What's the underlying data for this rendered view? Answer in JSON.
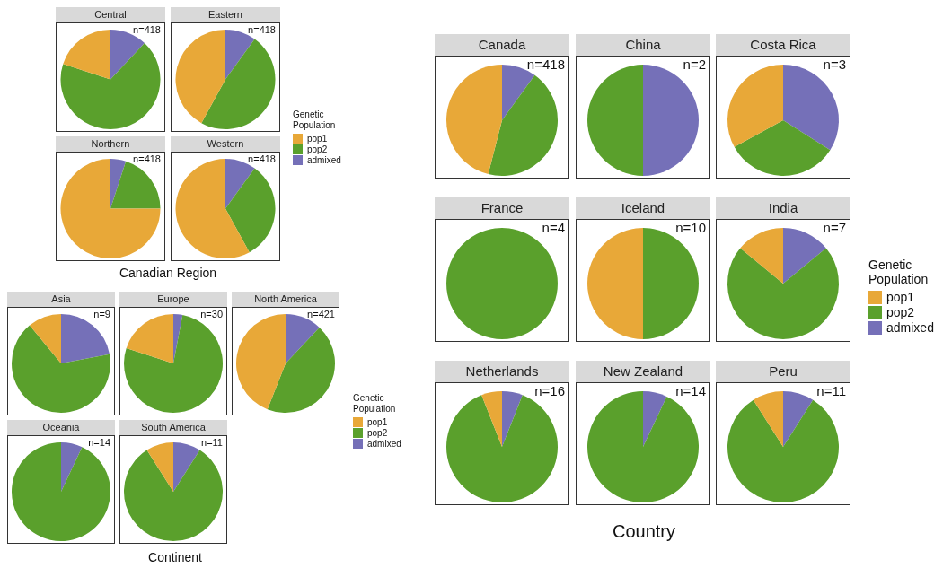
{
  "chart_data": [
    {
      "type": "pie",
      "xlabel": "Canadian Region",
      "legend": "right",
      "legend_title": "Genetic Population",
      "categories": [
        "pop1",
        "pop2",
        "admixed"
      ],
      "colors": [
        "#e8a838",
        "#5aa02c",
        "#7570b8"
      ],
      "series": [
        {
          "name": "Central",
          "values": [
            20,
            68,
            12
          ]
        },
        {
          "name": "Eastern",
          "values": [
            42,
            48,
            10
          ]
        },
        {
          "name": "Northern",
          "values": [
            75,
            20,
            5
          ]
        },
        {
          "name": "Western",
          "values": [
            58,
            32,
            10
          ]
        }
      ],
      "annotations": [
        "n=418",
        "n=418",
        "n=418",
        "n=418"
      ]
    },
    {
      "type": "pie",
      "xlabel": "Continent",
      "legend": "right",
      "legend_title": "Genetic Population",
      "categories": [
        "pop1",
        "pop2",
        "admixed"
      ],
      "colors": [
        "#e8a838",
        "#5aa02c",
        "#7570b8"
      ],
      "series": [
        {
          "name": "Asia",
          "values": [
            11,
            67,
            22
          ]
        },
        {
          "name": "Europe",
          "values": [
            20,
            77,
            3
          ]
        },
        {
          "name": "North America",
          "values": [
            44,
            44,
            12
          ]
        },
        {
          "name": "Oceania",
          "values": [
            0,
            93,
            7
          ]
        },
        {
          "name": "South America",
          "values": [
            9,
            82,
            9
          ]
        }
      ],
      "annotations": [
        "n=9",
        "n=30",
        "n=421",
        "n=14",
        "n=11"
      ]
    },
    {
      "type": "pie",
      "xlabel": "Country",
      "legend": "right",
      "legend_title": "Genetic Population",
      "categories": [
        "pop1",
        "pop2",
        "admixed"
      ],
      "colors": [
        "#e8a838",
        "#5aa02c",
        "#7570b8"
      ],
      "series": [
        {
          "name": "Canada",
          "values": [
            46,
            44,
            10
          ]
        },
        {
          "name": "China",
          "values": [
            0,
            50,
            50
          ]
        },
        {
          "name": "Costa Rica",
          "values": [
            33,
            33,
            34
          ]
        },
        {
          "name": "France",
          "values": [
            0,
            100,
            0
          ]
        },
        {
          "name": "Iceland",
          "values": [
            50,
            50,
            0
          ]
        },
        {
          "name": "India",
          "values": [
            14,
            72,
            14
          ]
        },
        {
          "name": "Netherlands",
          "values": [
            6,
            88,
            6
          ]
        },
        {
          "name": "New Zealand",
          "values": [
            0,
            93,
            7
          ]
        },
        {
          "name": "Peru",
          "values": [
            9,
            82,
            9
          ]
        }
      ],
      "annotations": [
        "n=418",
        "n=2",
        "n=3",
        "n=4",
        "n=10",
        "n=7",
        "n=16",
        "n=14",
        "n=11"
      ]
    }
  ]
}
